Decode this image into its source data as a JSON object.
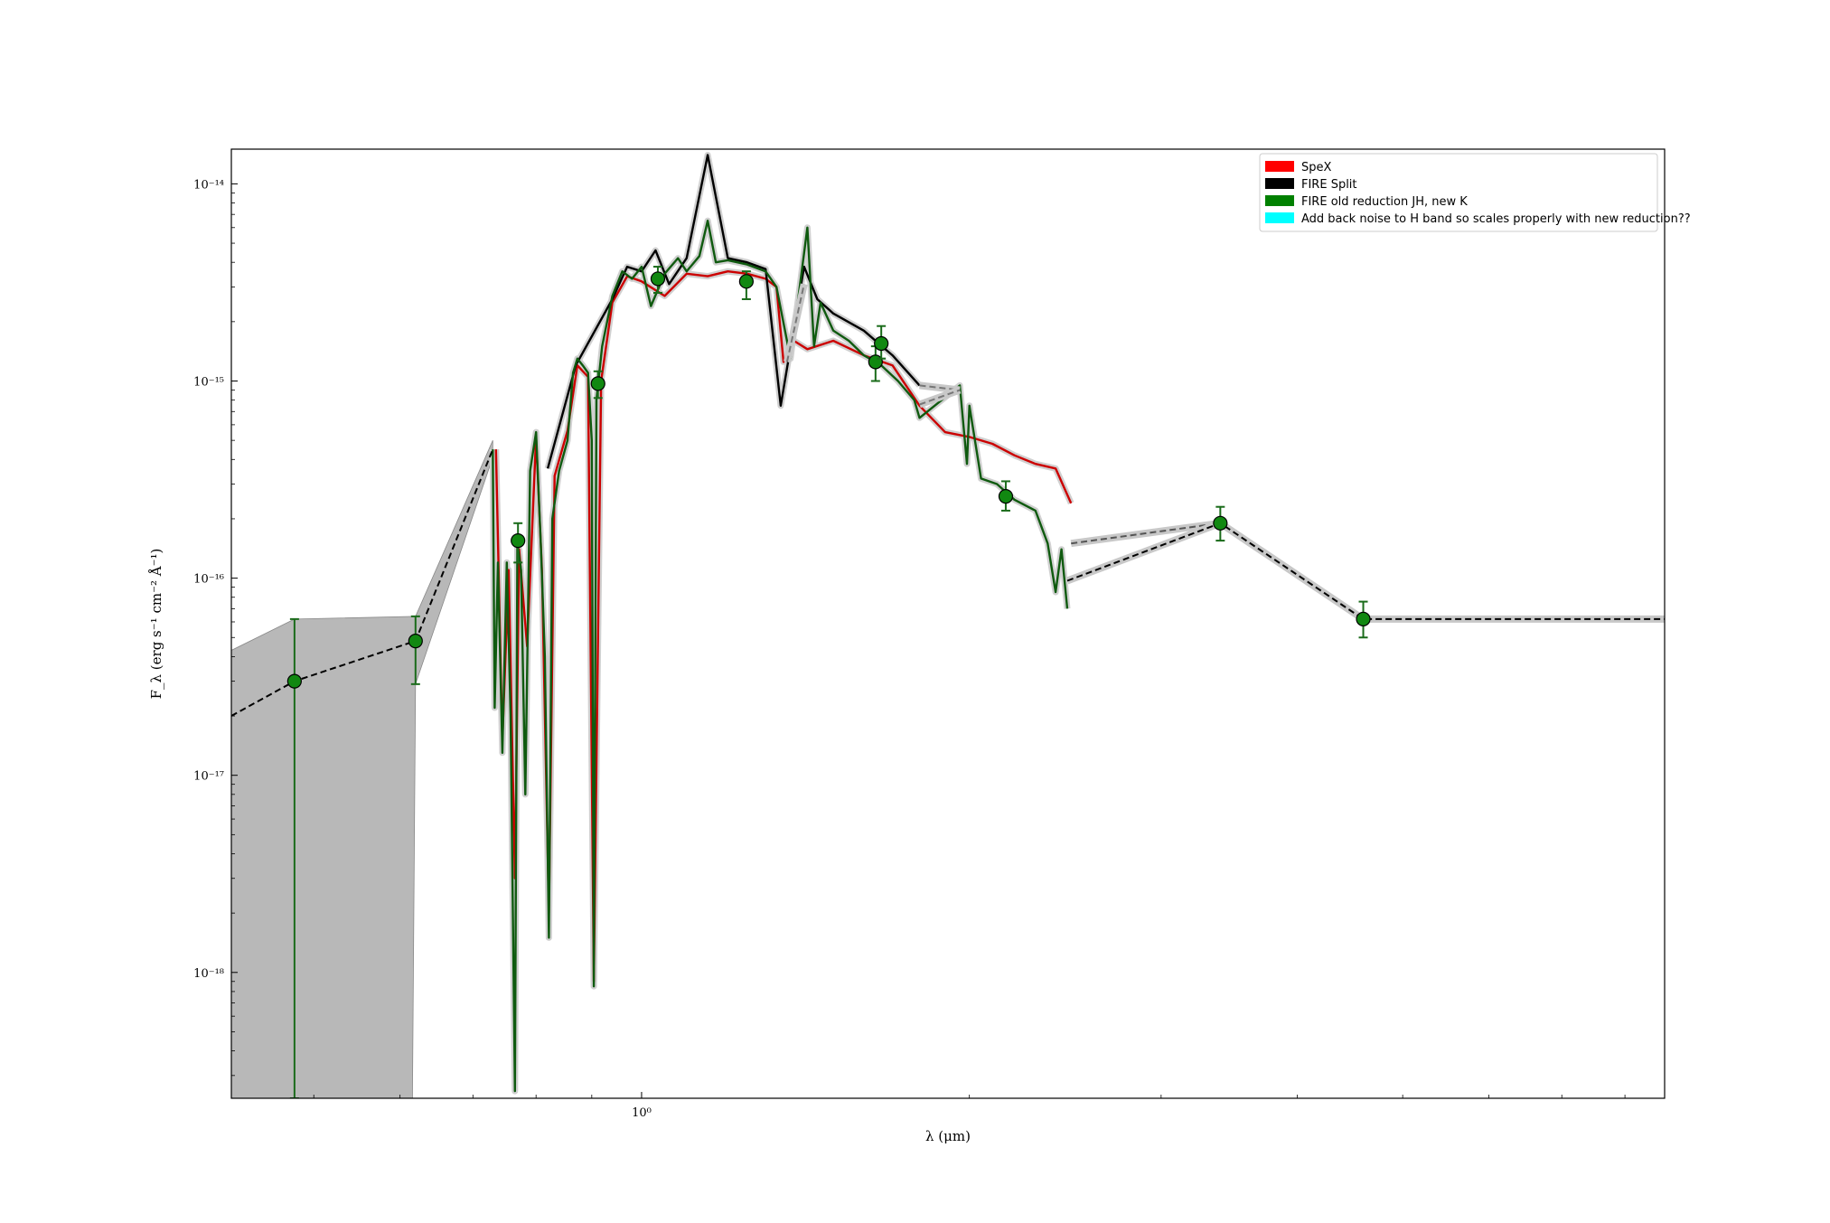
{
  "chart_data": {
    "type": "line",
    "title": "",
    "xlabel": "λ (μm)",
    "ylabel": "F_λ (erg s⁻¹ cm⁻² Å⁻¹)",
    "xscale": "log",
    "yscale": "log",
    "xlim": [
      0.42,
      8.7
    ],
    "ylim": [
      2.3e-19,
      1.5e-14
    ],
    "x_ticks": [
      {
        "value": 1.0,
        "label": "10⁰"
      }
    ],
    "y_ticks": [
      {
        "value": 1e-18,
        "label": "10⁻¹⁸"
      },
      {
        "value": 1e-17,
        "label": "10⁻¹⁷"
      },
      {
        "value": 1e-16,
        "label": "10⁻¹⁶"
      },
      {
        "value": 1e-15,
        "label": "10⁻¹⁵"
      },
      {
        "value": 1e-14,
        "label": "10⁻¹⁴"
      }
    ],
    "grid": false,
    "legend_position": "top-right",
    "legend": [
      {
        "label": "SpeX",
        "color": "#ff0000"
      },
      {
        "label": "FIRE Split",
        "color": "#000000"
      },
      {
        "label": "FIRE old reduction JH, new K",
        "color": "#008000"
      },
      {
        "label": "Add back noise to H band so scales properly with new reduction??",
        "color": "#00ffff"
      }
    ],
    "photometry": [
      {
        "x": 0.48,
        "y": 3e-17,
        "yerr_low": 2.3e-19,
        "yerr_high": 6.2e-17
      },
      {
        "x": 0.62,
        "y": 4.8e-17,
        "yerr_low": 2.9e-17,
        "yerr_high": 6.4e-17
      },
      {
        "x": 0.77,
        "y": 1.55e-16,
        "yerr_low": 1.2e-16,
        "yerr_high": 1.9e-16
      },
      {
        "x": 0.912,
        "y": 9.7e-16,
        "yerr_low": 8.2e-16,
        "yerr_high": 1.12e-15
      },
      {
        "x": 1.035,
        "y": 3.3e-15,
        "yerr_low": 2.8e-15,
        "yerr_high": 3.8e-15
      },
      {
        "x": 1.248,
        "y": 3.2e-15,
        "yerr_low": 2.6e-15,
        "yerr_high": 3.6e-15
      },
      {
        "x": 1.64,
        "y": 1.25e-15,
        "yerr_low": 1e-15,
        "yerr_high": 1.5e-15
      },
      {
        "x": 1.66,
        "y": 1.55e-15,
        "yerr_low": 1.3e-15,
        "yerr_high": 1.9e-15
      },
      {
        "x": 2.16,
        "y": 2.6e-16,
        "yerr_low": 2.2e-16,
        "yerr_high": 3.1e-16
      },
      {
        "x": 3.4,
        "y": 1.9e-16,
        "yerr_low": 1.55e-16,
        "yerr_high": 2.3e-16
      },
      {
        "x": 4.6,
        "y": 6.2e-17,
        "yerr_low": 5e-17,
        "yerr_high": 7.6e-17
      }
    ],
    "model_line": [
      {
        "x": 0.42,
        "y": 2e-17
      },
      {
        "x": 0.48,
        "y": 3e-17
      },
      {
        "x": 0.62,
        "y": 4.8e-17
      },
      {
        "x": 0.73,
        "y": 4.5e-16
      }
    ],
    "model_band": {
      "upper": [
        {
          "x": 0.42,
          "y": 4.3e-17
        },
        {
          "x": 0.48,
          "y": 6.2e-17
        },
        {
          "x": 0.62,
          "y": 6.4e-17
        },
        {
          "x": 0.73,
          "y": 5e-16
        }
      ],
      "lower": [
        {
          "x": 0.42,
          "y": 2.3e-19
        },
        {
          "x": 0.48,
          "y": 2.3e-19
        },
        {
          "x": 0.616,
          "y": 2.3e-19
        },
        {
          "x": 0.62,
          "y": 2.9e-17
        },
        {
          "x": 0.73,
          "y": 4.1e-16
        }
      ]
    },
    "gap_lines": [
      {
        "points": [
          {
            "x": 2.48,
            "y": 1.5e-16
          },
          {
            "x": 3.4,
            "y": 1.9e-16
          }
        ],
        "style": "dashed",
        "color": "#555555"
      },
      {
        "points": [
          {
            "x": 2.46,
            "y": 9.7e-17
          },
          {
            "x": 3.4,
            "y": 1.9e-16
          },
          {
            "x": 4.6,
            "y": 6.2e-17
          },
          {
            "x": 8.7,
            "y": 6.2e-17
          }
        ],
        "style": "dashed",
        "color": "#000000"
      },
      {
        "points": [
          {
            "x": 1.36,
            "y": 1.25e-15
          },
          {
            "x": 1.41,
            "y": 3.1e-15
          }
        ],
        "style": "dashed",
        "color": "#777777"
      },
      {
        "points": [
          {
            "x": 1.8,
            "y": 9.5e-16
          },
          {
            "x": 1.96,
            "y": 9e-16
          }
        ],
        "style": "dashed",
        "color": "#777777"
      },
      {
        "points": [
          {
            "x": 1.8,
            "y": 7.6e-16
          },
          {
            "x": 1.96,
            "y": 9e-16
          }
        ],
        "style": "dashed",
        "color": "#777777"
      }
    ],
    "spectra": [
      {
        "name": "SpeX",
        "color": "#cc0000",
        "points": [
          {
            "x": 0.735,
            "y": 4.5e-16
          },
          {
            "x": 0.745,
            "y": 1.5e-17
          },
          {
            "x": 0.755,
            "y": 1.1e-16
          },
          {
            "x": 0.765,
            "y": 3e-18
          },
          {
            "x": 0.772,
            "y": 1.4e-16
          },
          {
            "x": 0.785,
            "y": 4.5e-17
          },
          {
            "x": 0.8,
            "y": 5.2e-16
          },
          {
            "x": 0.81,
            "y": 1.1e-16
          },
          {
            "x": 0.822,
            "y": 2e-18
          },
          {
            "x": 0.832,
            "y": 3.3e-16
          },
          {
            "x": 0.855,
            "y": 5.6e-16
          },
          {
            "x": 0.873,
            "y": 1.2e-15
          },
          {
            "x": 0.893,
            "y": 1.05e-15
          },
          {
            "x": 0.904,
            "y": 9e-19
          },
          {
            "x": 0.918,
            "y": 1e-15
          },
          {
            "x": 0.94,
            "y": 2.5e-15
          },
          {
            "x": 0.97,
            "y": 3.4e-15
          },
          {
            "x": 1.0,
            "y": 3.2e-15
          },
          {
            "x": 1.05,
            "y": 2.7e-15
          },
          {
            "x": 1.1,
            "y": 3.5e-15
          },
          {
            "x": 1.15,
            "y": 3.4e-15
          },
          {
            "x": 1.2,
            "y": 3.6e-15
          },
          {
            "x": 1.25,
            "y": 3.5e-15
          },
          {
            "x": 1.3,
            "y": 3.3e-15
          },
          {
            "x": 1.33,
            "y": 3e-15
          },
          {
            "x": 1.35,
            "y": 1.25e-15
          },
          {
            "x": 1.38,
            "y": 1.6e-15
          },
          {
            "x": 1.42,
            "y": 1.45e-15
          },
          {
            "x": 1.5,
            "y": 1.6e-15
          },
          {
            "x": 1.6,
            "y": 1.35e-15
          },
          {
            "x": 1.7,
            "y": 1.2e-15
          },
          {
            "x": 1.8,
            "y": 7.5e-16
          },
          {
            "x": 1.9,
            "y": 5.5e-16
          },
          {
            "x": 2.0,
            "y": 5.2e-16
          },
          {
            "x": 2.1,
            "y": 4.8e-16
          },
          {
            "x": 2.2,
            "y": 4.2e-16
          },
          {
            "x": 2.3,
            "y": 3.8e-16
          },
          {
            "x": 2.4,
            "y": 3.6e-16
          },
          {
            "x": 2.48,
            "y": 2.4e-16
          }
        ]
      },
      {
        "name": "FIRE Split",
        "color": "#000000",
        "points": [
          {
            "x": 0.82,
            "y": 3.6e-16
          },
          {
            "x": 0.87,
            "y": 1.2e-15
          },
          {
            "x": 0.94,
            "y": 2.6e-15
          },
          {
            "x": 0.97,
            "y": 3.8e-15
          },
          {
            "x": 1.0,
            "y": 3.6e-15
          },
          {
            "x": 1.03,
            "y": 4.6e-15
          },
          {
            "x": 1.06,
            "y": 3.1e-15
          },
          {
            "x": 1.1,
            "y": 4.2e-15
          },
          {
            "x": 1.15,
            "y": 1.4e-14
          },
          {
            "x": 1.2,
            "y": 4.2e-15
          },
          {
            "x": 1.25,
            "y": 4e-15
          },
          {
            "x": 1.3,
            "y": 3.7e-15
          },
          {
            "x": 1.342,
            "y": 7.5e-16
          },
          {
            "x": 1.41,
            "y": 3.8e-15
          },
          {
            "x": 1.45,
            "y": 2.6e-15
          },
          {
            "x": 1.5,
            "y": 2.2e-15
          },
          {
            "x": 1.6,
            "y": 1.8e-15
          },
          {
            "x": 1.7,
            "y": 1.35e-15
          },
          {
            "x": 1.8,
            "y": 9.5e-16
          }
        ]
      },
      {
        "name": "FIRE old reduction JH, new K",
        "color": "#0f5a0f",
        "points": [
          {
            "x": 0.73,
            "y": 4.5e-16
          },
          {
            "x": 0.733,
            "y": 2.2e-17
          },
          {
            "x": 0.738,
            "y": 1.2e-16
          },
          {
            "x": 0.745,
            "y": 1.3e-17
          },
          {
            "x": 0.752,
            "y": 1.2e-16
          },
          {
            "x": 0.758,
            "y": 2e-17
          },
          {
            "x": 0.765,
            "y": 2.5e-19
          },
          {
            "x": 0.769,
            "y": 1.5e-16
          },
          {
            "x": 0.775,
            "y": 1.1e-16
          },
          {
            "x": 0.782,
            "y": 8e-18
          },
          {
            "x": 0.79,
            "y": 3.5e-16
          },
          {
            "x": 0.8,
            "y": 5.5e-16
          },
          {
            "x": 0.808,
            "y": 1.5e-16
          },
          {
            "x": 0.815,
            "y": 4e-17
          },
          {
            "x": 0.822,
            "y": 1.5e-18
          },
          {
            "x": 0.828,
            "y": 2e-16
          },
          {
            "x": 0.84,
            "y": 3.5e-16
          },
          {
            "x": 0.855,
            "y": 5e-16
          },
          {
            "x": 0.865,
            "y": 1.1e-15
          },
          {
            "x": 0.873,
            "y": 1.3e-15
          },
          {
            "x": 0.883,
            "y": 1.2e-15
          },
          {
            "x": 0.893,
            "y": 1.1e-15
          },
          {
            "x": 0.9,
            "y": 5e-16
          },
          {
            "x": 0.904,
            "y": 8.5e-19
          },
          {
            "x": 0.909,
            "y": 8e-16
          },
          {
            "x": 0.92,
            "y": 1.5e-15
          },
          {
            "x": 0.94,
            "y": 2.7e-15
          },
          {
            "x": 0.96,
            "y": 3.6e-15
          },
          {
            "x": 0.98,
            "y": 3.3e-15
          },
          {
            "x": 1.0,
            "y": 3.8e-15
          },
          {
            "x": 1.02,
            "y": 2.4e-15
          },
          {
            "x": 1.05,
            "y": 3.5e-15
          },
          {
            "x": 1.08,
            "y": 4.2e-15
          },
          {
            "x": 1.1,
            "y": 3.6e-15
          },
          {
            "x": 1.13,
            "y": 4.3e-15
          },
          {
            "x": 1.15,
            "y": 6.5e-15
          },
          {
            "x": 1.17,
            "y": 4e-15
          },
          {
            "x": 1.2,
            "y": 4.1e-15
          },
          {
            "x": 1.25,
            "y": 3.9e-15
          },
          {
            "x": 1.3,
            "y": 3.6e-15
          },
          {
            "x": 1.33,
            "y": 3e-15
          },
          {
            "x": 1.37,
            "y": 1.3e-15
          },
          {
            "x": 1.42,
            "y": 6e-15
          },
          {
            "x": 1.44,
            "y": 1.5e-15
          },
          {
            "x": 1.46,
            "y": 2.5e-15
          },
          {
            "x": 1.5,
            "y": 1.8e-15
          },
          {
            "x": 1.55,
            "y": 1.6e-15
          },
          {
            "x": 1.6,
            "y": 1.35e-15
          },
          {
            "x": 1.66,
            "y": 1.2e-15
          },
          {
            "x": 1.72,
            "y": 1e-15
          },
          {
            "x": 1.78,
            "y": 8e-16
          },
          {
            "x": 1.8,
            "y": 6.5e-16
          },
          {
            "x": 1.96,
            "y": 9.5e-16
          },
          {
            "x": 1.99,
            "y": 3.8e-16
          },
          {
            "x": 2.0,
            "y": 7.5e-16
          },
          {
            "x": 2.05,
            "y": 3.2e-16
          },
          {
            "x": 2.12,
            "y": 3e-16
          },
          {
            "x": 2.2,
            "y": 2.5e-16
          },
          {
            "x": 2.3,
            "y": 2.2e-16
          },
          {
            "x": 2.36,
            "y": 1.5e-16
          },
          {
            "x": 2.4,
            "y": 8.5e-17
          },
          {
            "x": 2.43,
            "y": 1.4e-16
          },
          {
            "x": 2.46,
            "y": 7e-17
          }
        ]
      }
    ]
  }
}
